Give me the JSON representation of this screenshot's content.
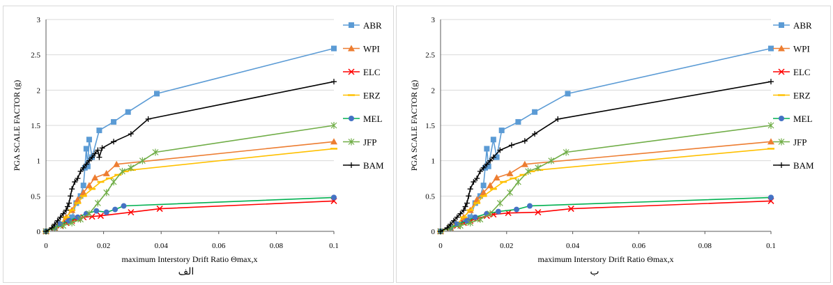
{
  "figure": {
    "panels": [
      {
        "caption": "الف"
      },
      {
        "caption": "ب"
      }
    ]
  },
  "colors": {
    "ABR": "#5b9bd5",
    "WPI": "#ed7d31",
    "ELC": "#ff0000",
    "ERZ": "#ffc000",
    "MEL": "#00b050",
    "MEL_marker": "#4472c4",
    "JFP": "#70ad47",
    "BAM": "#000000",
    "grid": "#d9d9d9"
  },
  "chart_data": [
    {
      "type": "line",
      "xlabel": "maximum  Interstory Drift Ratio Θmax,x",
      "ylabel": "PGA  SCALE FACTOR (g)",
      "xlim": [
        0,
        0.1
      ],
      "ylim": [
        0,
        3
      ],
      "xticks": [
        "0",
        "0.02",
        "0.04",
        "0.06",
        "0.08",
        "0.1"
      ],
      "yticks": [
        "0",
        "0.5",
        "1",
        "1.5",
        "2",
        "2.5",
        "3"
      ],
      "grid": "horizontal",
      "legend_position": "right",
      "series": [
        {
          "name": "ABR",
          "marker": "square",
          "x": [
            0,
            0.003,
            0.005,
            0.007,
            0.009,
            0.0105,
            0.012,
            0.013,
            0.0135,
            0.014,
            0.0145,
            0.015,
            0.016,
            0.0185,
            0.0235,
            0.0285,
            0.0385,
            0.1
          ],
          "y": [
            0,
            0.05,
            0.1,
            0.15,
            0.2,
            0.4,
            0.5,
            0.65,
            0.9,
            1.17,
            0.92,
            1.3,
            1.05,
            1.43,
            1.55,
            1.69,
            1.95,
            2.59
          ]
        },
        {
          "name": "WPI",
          "marker": "triangle",
          "x": [
            0,
            0.003,
            0.005,
            0.007,
            0.009,
            0.011,
            0.013,
            0.015,
            0.017,
            0.021,
            0.0245,
            0.1
          ],
          "y": [
            0,
            0.05,
            0.1,
            0.2,
            0.3,
            0.45,
            0.55,
            0.65,
            0.76,
            0.82,
            0.95,
            1.27
          ]
        },
        {
          "name": "ELC",
          "marker": "x",
          "x": [
            0,
            0.003,
            0.005,
            0.007,
            0.009,
            0.011,
            0.013,
            0.016,
            0.019,
            0.0295,
            0.0395,
            0.1
          ],
          "y": [
            0,
            0.05,
            0.08,
            0.12,
            0.15,
            0.18,
            0.2,
            0.21,
            0.22,
            0.27,
            0.32,
            0.43
          ]
        },
        {
          "name": "ERZ",
          "marker": "dash",
          "x": [
            0,
            0.003,
            0.005,
            0.007,
            0.009,
            0.011,
            0.013,
            0.016,
            0.019,
            0.022,
            0.025,
            0.0275,
            0.03,
            0.1
          ],
          "y": [
            0,
            0.05,
            0.1,
            0.2,
            0.3,
            0.4,
            0.5,
            0.6,
            0.7,
            0.75,
            0.8,
            0.85,
            0.87,
            1.17
          ]
        },
        {
          "name": "MEL",
          "marker": "circle",
          "x": [
            0,
            0.003,
            0.005,
            0.008,
            0.011,
            0.014,
            0.0175,
            0.021,
            0.024,
            0.027,
            0.1
          ],
          "y": [
            0,
            0.05,
            0.1,
            0.15,
            0.2,
            0.25,
            0.29,
            0.27,
            0.31,
            0.36,
            0.48
          ]
        },
        {
          "name": "JFP",
          "marker": "star",
          "x": [
            0,
            0.003,
            0.006,
            0.009,
            0.012,
            0.015,
            0.018,
            0.021,
            0.0235,
            0.0265,
            0.0295,
            0.0335,
            0.038,
            0.1
          ],
          "y": [
            0,
            0.05,
            0.08,
            0.12,
            0.17,
            0.25,
            0.4,
            0.55,
            0.7,
            0.85,
            0.9,
            1.0,
            1.12,
            1.5
          ]
        },
        {
          "name": "BAM",
          "marker": "plus",
          "x": [
            0,
            0.002,
            0.003,
            0.004,
            0.005,
            0.006,
            0.007,
            0.0075,
            0.008,
            0.0085,
            0.009,
            0.01,
            0.011,
            0.012,
            0.013,
            0.014,
            0.015,
            0.016,
            0.017,
            0.018,
            0.0185,
            0.0195,
            0.0235,
            0.0295,
            0.0355,
            0.1
          ],
          "y": [
            0,
            0.05,
            0.1,
            0.15,
            0.2,
            0.25,
            0.3,
            0.35,
            0.4,
            0.5,
            0.6,
            0.7,
            0.75,
            0.85,
            0.9,
            0.95,
            1.0,
            1.05,
            1.1,
            1.15,
            1.05,
            1.18,
            1.27,
            1.38,
            1.59,
            2.12
          ]
        }
      ]
    },
    {
      "type": "line",
      "xlabel": "maximum  Interstory Drift Ratio Θmax,x",
      "ylabel": "PGA  SCALE FACTOR (g)",
      "xlim": [
        0,
        0.1
      ],
      "ylim": [
        0,
        3
      ],
      "xticks": [
        "0",
        "0.02",
        "0.04",
        "0.06",
        "0.08",
        "0.1"
      ],
      "yticks": [
        "0",
        "0.5",
        "1",
        "1.5",
        "2",
        "2.5",
        "3"
      ],
      "grid": "horizontal",
      "legend_position": "right",
      "series": [
        {
          "name": "ABR",
          "marker": "square",
          "x": [
            0,
            0.003,
            0.005,
            0.007,
            0.009,
            0.0105,
            0.012,
            0.013,
            0.0135,
            0.014,
            0.0145,
            0.016,
            0.017,
            0.0185,
            0.0235,
            0.0285,
            0.0385,
            0.1
          ],
          "y": [
            0,
            0.05,
            0.1,
            0.15,
            0.2,
            0.4,
            0.5,
            0.65,
            0.9,
            1.17,
            0.92,
            1.3,
            1.05,
            1.43,
            1.55,
            1.69,
            1.95,
            2.59
          ]
        },
        {
          "name": "WPI",
          "marker": "triangle",
          "x": [
            0,
            0.003,
            0.005,
            0.007,
            0.009,
            0.011,
            0.013,
            0.015,
            0.017,
            0.021,
            0.0255,
            0.1
          ],
          "y": [
            0,
            0.05,
            0.1,
            0.2,
            0.3,
            0.45,
            0.55,
            0.65,
            0.76,
            0.82,
            0.95,
            1.27
          ]
        },
        {
          "name": "ELC",
          "marker": "x",
          "x": [
            0,
            0.003,
            0.005,
            0.007,
            0.009,
            0.011,
            0.014,
            0.016,
            0.0205,
            0.0295,
            0.0395,
            0.1
          ],
          "y": [
            0,
            0.05,
            0.08,
            0.12,
            0.15,
            0.18,
            0.22,
            0.24,
            0.26,
            0.27,
            0.32,
            0.43
          ]
        },
        {
          "name": "ERZ",
          "marker": "dash",
          "x": [
            0,
            0.003,
            0.005,
            0.007,
            0.009,
            0.011,
            0.013,
            0.016,
            0.019,
            0.022,
            0.025,
            0.0275,
            0.03,
            0.1
          ],
          "y": [
            0,
            0.05,
            0.1,
            0.2,
            0.3,
            0.4,
            0.5,
            0.6,
            0.7,
            0.75,
            0.8,
            0.85,
            0.87,
            1.17
          ]
        },
        {
          "name": "MEL",
          "marker": "circle",
          "x": [
            0,
            0.003,
            0.005,
            0.008,
            0.0105,
            0.014,
            0.0175,
            0.023,
            0.027,
            0.1
          ],
          "y": [
            0,
            0.05,
            0.1,
            0.15,
            0.2,
            0.25,
            0.28,
            0.31,
            0.36,
            0.48
          ]
        },
        {
          "name": "JFP",
          "marker": "star",
          "x": [
            0,
            0.003,
            0.006,
            0.009,
            0.012,
            0.015,
            0.018,
            0.021,
            0.0235,
            0.0265,
            0.0295,
            0.0335,
            0.038,
            0.1
          ],
          "y": [
            0,
            0.05,
            0.08,
            0.12,
            0.17,
            0.25,
            0.4,
            0.55,
            0.7,
            0.85,
            0.9,
            1.0,
            1.12,
            1.5
          ]
        },
        {
          "name": "BAM",
          "marker": "plus",
          "x": [
            0,
            0.002,
            0.003,
            0.004,
            0.005,
            0.006,
            0.007,
            0.0075,
            0.008,
            0.0085,
            0.009,
            0.01,
            0.011,
            0.012,
            0.013,
            0.014,
            0.015,
            0.016,
            0.018,
            0.0215,
            0.0255,
            0.0285,
            0.0355,
            0.1
          ],
          "y": [
            0,
            0.05,
            0.1,
            0.15,
            0.2,
            0.25,
            0.3,
            0.35,
            0.4,
            0.5,
            0.6,
            0.7,
            0.75,
            0.85,
            0.9,
            0.95,
            1.0,
            1.05,
            1.15,
            1.22,
            1.28,
            1.38,
            1.59,
            2.12
          ]
        }
      ]
    }
  ]
}
